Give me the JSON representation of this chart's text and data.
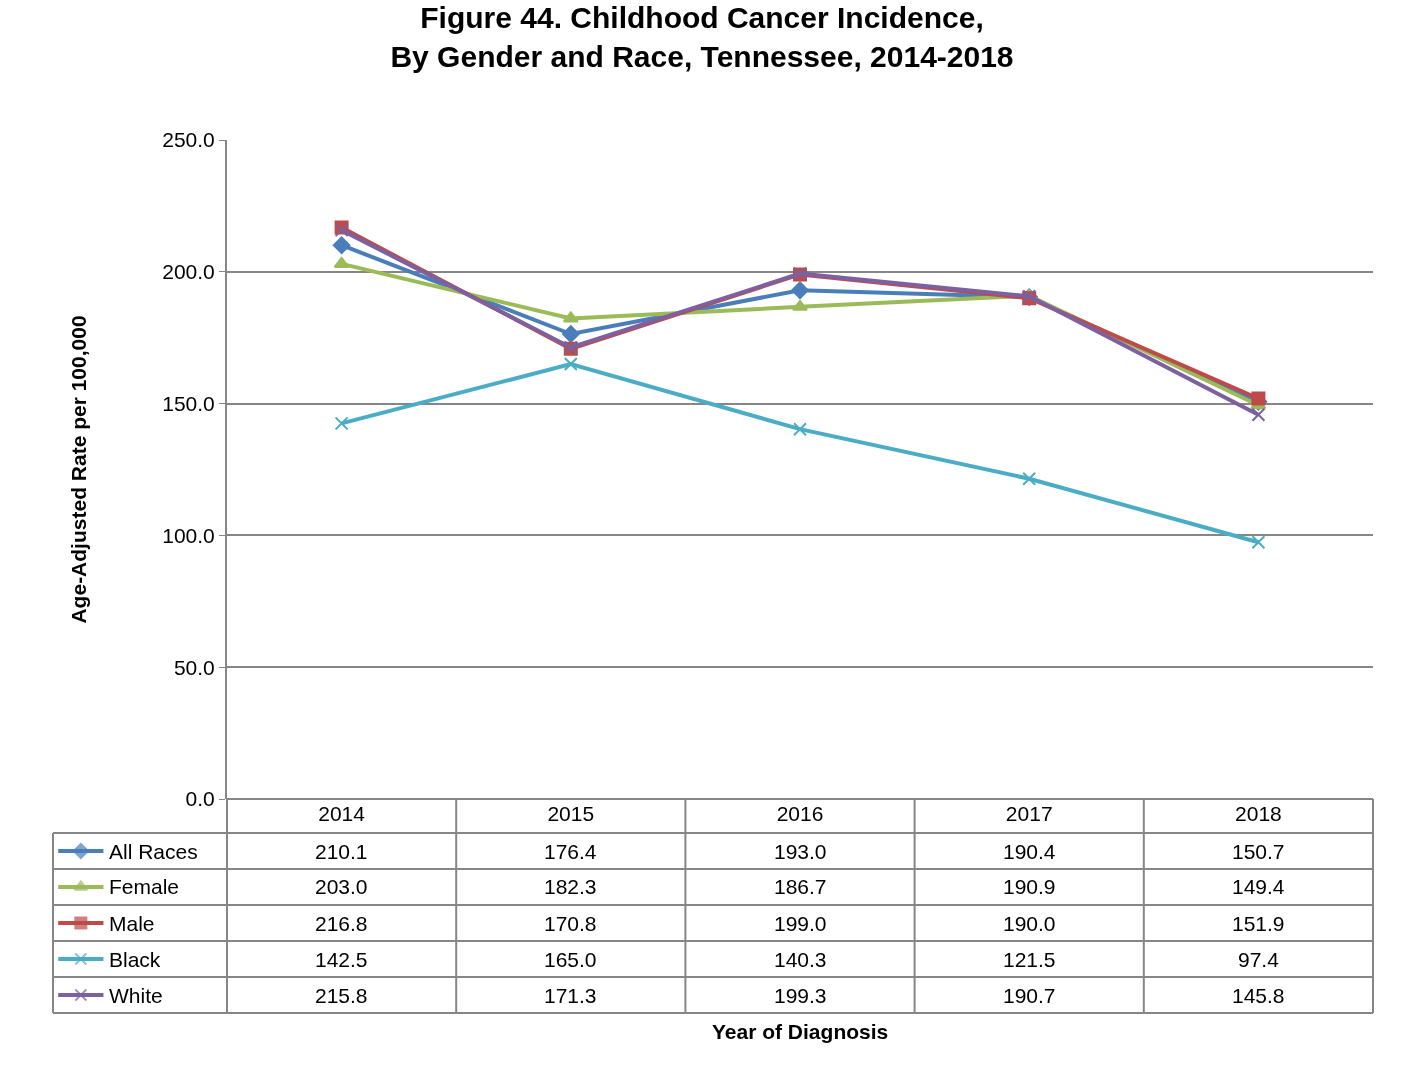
{
  "chart_data": {
    "type": "line",
    "title": "Figure 44. Childhood Cancer Incidence,\nBy Gender and Race, Tennessee, 2014-2018",
    "annotations": [
      "Year of Diagnosis"
    ],
    "ylabel": "Age-Adjusted Rate per 100,000",
    "categories": [
      "2014",
      "2015",
      "2016",
      "2017",
      "2018"
    ],
    "series": [
      {
        "name": "All Races",
        "color": "#4a7ebb",
        "marker": "diamond",
        "values": [
          210.1,
          176.4,
          193.0,
          190.4,
          150.7
        ],
        "value_labels": [
          "210.1",
          "176.4",
          "193.0",
          "190.4",
          "150.7"
        ]
      },
      {
        "name": "Female",
        "color": "#9bbb59",
        "marker": "triangle",
        "values": [
          203.0,
          182.3,
          186.7,
          190.9,
          149.4
        ],
        "value_labels": [
          "203.0",
          "182.3",
          "186.7",
          "190.9",
          "149.4"
        ]
      },
      {
        "name": "Male",
        "color": "#be4b48",
        "marker": "square",
        "values": [
          216.8,
          170.8,
          199.0,
          190.0,
          151.9
        ],
        "value_labels": [
          "216.8",
          "170.8",
          "199.0",
          "190.0",
          "151.9"
        ]
      },
      {
        "name": "Black",
        "color": "#4bacc6",
        "marker": "cross",
        "values": [
          142.5,
          165.0,
          140.3,
          121.5,
          97.4
        ],
        "value_labels": [
          "142.5",
          "165.0",
          "140.3",
          "121.5",
          "97.4"
        ]
      },
      {
        "name": "White",
        "color": "#7d60a0",
        "marker": "cross",
        "values": [
          215.8,
          171.3,
          199.3,
          190.7,
          145.8
        ],
        "value_labels": [
          "215.8",
          "171.3",
          "199.3",
          "190.7",
          "145.8"
        ]
      }
    ],
    "ylim": [
      0,
      250
    ],
    "yticks": [
      {
        "value": 0,
        "label": "0.0"
      },
      {
        "value": 50,
        "label": "50.0"
      },
      {
        "value": 100,
        "label": "100.0"
      },
      {
        "value": 150,
        "label": "150.0"
      },
      {
        "value": 200,
        "label": "200.0"
      },
      {
        "value": 250,
        "label": "250.0"
      }
    ],
    "grid": "y",
    "line_style": "solid",
    "legend": "bottom left"
  }
}
